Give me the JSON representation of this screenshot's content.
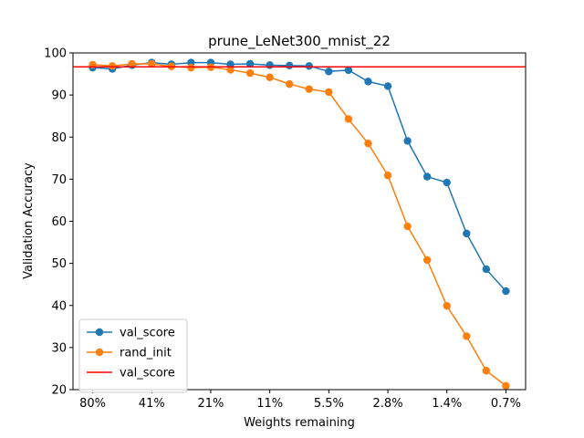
{
  "chart_data": {
    "type": "line",
    "title": "prune_LeNet300_mnist_22",
    "xlabel": "Weights remaining",
    "ylabel": "Validation Accuracy",
    "ylim": [
      20,
      100
    ],
    "yticks": [
      20,
      30,
      40,
      50,
      60,
      70,
      80,
      90,
      100
    ],
    "x": [
      0,
      1,
      2,
      3,
      4,
      5,
      6,
      7,
      8,
      9,
      10,
      11,
      12,
      13,
      14,
      15,
      16,
      17,
      18,
      19,
      20,
      21
    ],
    "xticks": [
      {
        "x": 0,
        "label": "80%"
      },
      {
        "x": 3,
        "label": "41%"
      },
      {
        "x": 6,
        "label": "21%"
      },
      {
        "x": 9,
        "label": "11%"
      },
      {
        "x": 12,
        "label": "5.5%"
      },
      {
        "x": 15,
        "label": "2.8%"
      },
      {
        "x": 18,
        "label": "1.4%"
      },
      {
        "x": 21,
        "label": "0.7%"
      }
    ],
    "xlim": [
      -1,
      22
    ],
    "series": [
      {
        "name": "val_score",
        "color": "#1f77b4",
        "marker": "circle",
        "values": [
          96.5,
          96.2,
          97.1,
          97.7,
          97.3,
          97.7,
          97.7,
          97.3,
          97.4,
          97.1,
          97.0,
          96.9,
          95.6,
          95.9,
          93.2,
          92.1,
          79.1,
          70.6,
          69.2,
          57.1,
          48.6,
          43.4
        ]
      },
      {
        "name": "rand_init",
        "color": "#ff7f0e",
        "marker": "circle",
        "values": [
          97.2,
          96.9,
          97.4,
          97.4,
          96.8,
          96.5,
          96.6,
          96.0,
          95.2,
          94.2,
          92.6,
          91.4,
          90.7,
          84.3,
          78.5,
          70.9,
          58.8,
          50.8,
          39.9,
          32.7,
          24.5,
          20.9
        ]
      }
    ],
    "hlines": [
      {
        "name": "val_score",
        "color": "#ff0000",
        "value": 96.7
      }
    ],
    "legend": {
      "position": "lower-left"
    },
    "grid": false
  }
}
